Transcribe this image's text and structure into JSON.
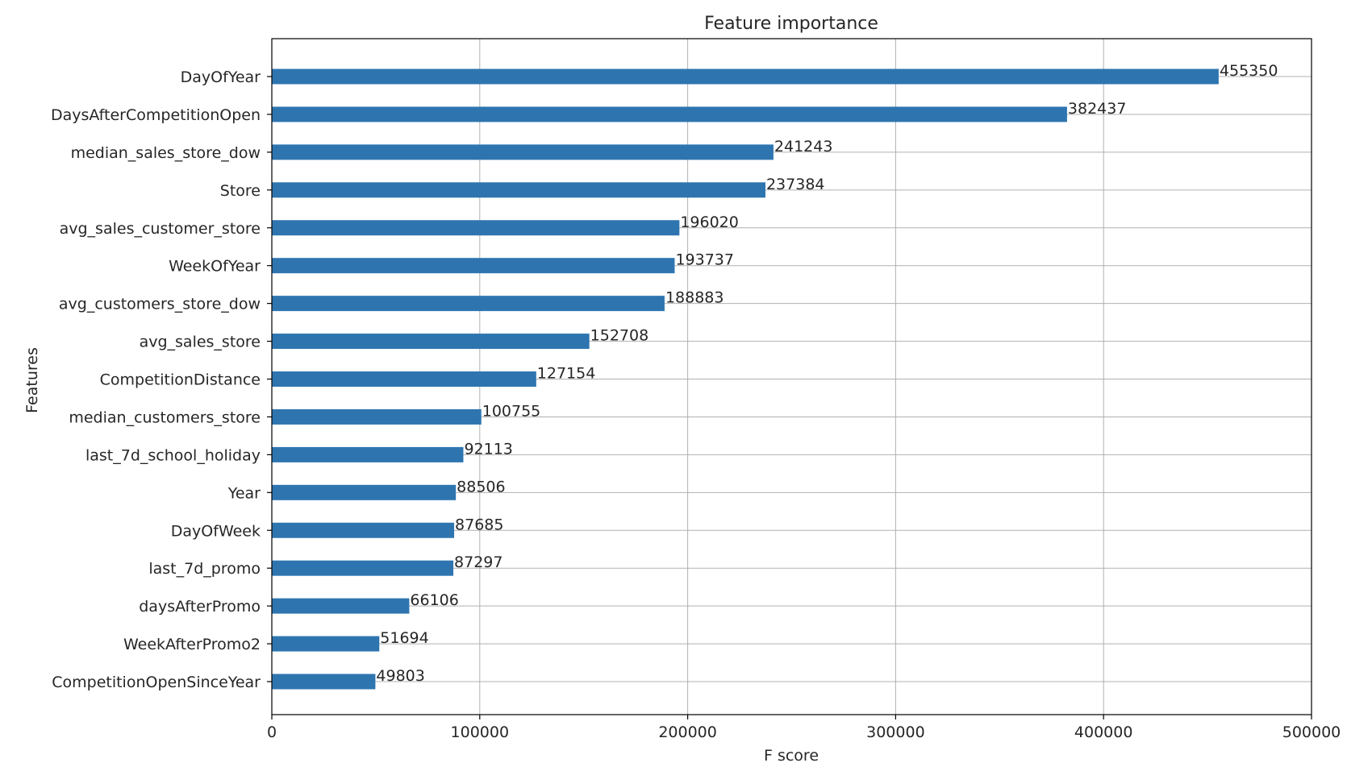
{
  "chart_data": {
    "type": "bar",
    "orientation": "horizontal",
    "title": "Feature importance",
    "xlabel": "F score",
    "ylabel": "Features",
    "xlim": [
      0,
      500000
    ],
    "xticks": [
      0,
      100000,
      200000,
      300000,
      400000,
      500000
    ],
    "grid": true,
    "bar_color": "#2e75b0",
    "categories": [
      "DayOfYear",
      "DaysAfterCompetitionOpen",
      "median_sales_store_dow",
      "Store",
      "avg_sales_customer_store",
      "WeekOfYear",
      "avg_customers_store_dow",
      "avg_sales_store",
      "CompetitionDistance",
      "median_customers_store",
      "last_7d_school_holiday",
      "Year",
      "DayOfWeek",
      "last_7d_promo",
      "daysAfterPromo",
      "WeekAfterPromo2",
      "CompetitionOpenSinceYear"
    ],
    "values": [
      455350,
      382437,
      241243,
      237384,
      196020,
      193737,
      188883,
      152708,
      127154,
      100755,
      92113,
      88506,
      87685,
      87297,
      66106,
      51694,
      49803
    ]
  }
}
